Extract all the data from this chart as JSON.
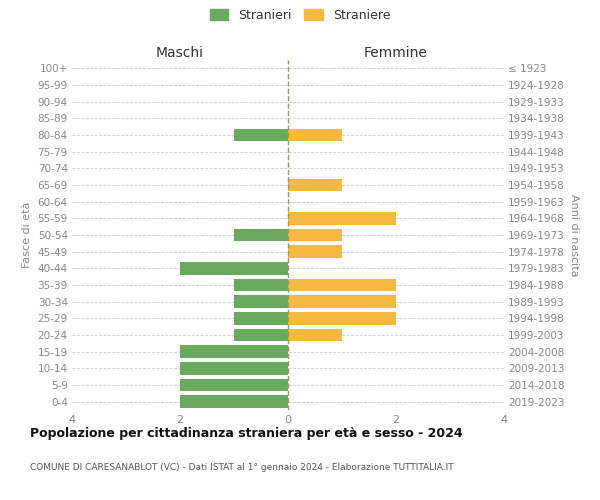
{
  "age_groups": [
    "100+",
    "95-99",
    "90-94",
    "85-89",
    "80-84",
    "75-79",
    "70-74",
    "65-69",
    "60-64",
    "55-59",
    "50-54",
    "45-49",
    "40-44",
    "35-39",
    "30-34",
    "25-29",
    "20-24",
    "15-19",
    "10-14",
    "5-9",
    "0-4"
  ],
  "birth_years": [
    "≤ 1923",
    "1924-1928",
    "1929-1933",
    "1934-1938",
    "1939-1943",
    "1944-1948",
    "1949-1953",
    "1954-1958",
    "1959-1963",
    "1964-1968",
    "1969-1973",
    "1974-1978",
    "1979-1983",
    "1984-1988",
    "1989-1993",
    "1994-1998",
    "1999-2003",
    "2004-2008",
    "2009-2013",
    "2014-2018",
    "2019-2023"
  ],
  "males": [
    0,
    0,
    0,
    0,
    1,
    0,
    0,
    0,
    0,
    0,
    1,
    0,
    2,
    1,
    1,
    1,
    1,
    2,
    2,
    2,
    2
  ],
  "females": [
    0,
    0,
    0,
    0,
    1,
    0,
    0,
    1,
    0,
    2,
    1,
    1,
    0,
    2,
    2,
    2,
    1,
    0,
    0,
    0,
    0
  ],
  "male_color": "#6aaa5e",
  "female_color": "#f5b942",
  "background_color": "#ffffff",
  "grid_color": "#cccccc",
  "title": "Popolazione per cittadinanza straniera per età e sesso - 2024",
  "subtitle": "COMUNE DI CARESANABLOT (VC) - Dati ISTAT al 1° gennaio 2024 - Elaborazione TUTTITALIA.IT",
  "legend_stranieri": "Stranieri",
  "legend_straniere": "Straniere",
  "xlabel_left": "Maschi",
  "xlabel_right": "Femmine",
  "ylabel_left": "Fasce di età",
  "ylabel_right": "Anni di nascita",
  "xlim": 4,
  "tick_color": "#888888",
  "bar_height": 0.75
}
